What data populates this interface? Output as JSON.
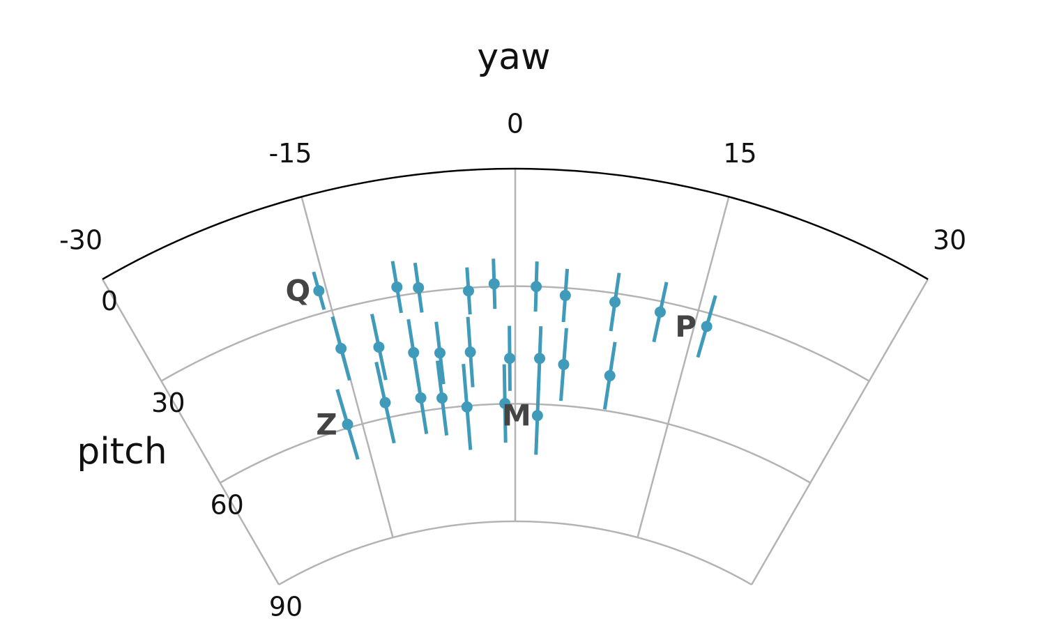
{
  "chart_data": {
    "type": "polar-errorbar",
    "theta_title": "yaw",
    "r_title": "pitch",
    "thetalim": [
      -30,
      30
    ],
    "thetaticks": [
      -30,
      -15,
      0,
      15,
      30
    ],
    "rlim": [
      0,
      90
    ],
    "rticks": [
      0,
      30,
      60,
      90
    ],
    "color": "#3f9bb9",
    "grid_color": "#b3b3b3",
    "theta": [
      -15.6,
      -9.5,
      -7.8,
      -3.8,
      -1.7,
      1.7,
      4.1,
      8.2,
      12.0,
      16.0,
      -15.1,
      -11.9,
      -9.0,
      -6.7,
      -4.0,
      -0.5,
      2.2,
      4.4,
      8.7,
      -16.4,
      -12.4,
      -9.0,
      -7.0,
      -4.7,
      -1.0,
      2.2
    ],
    "values": [
      24.3,
      27.7,
      28.7,
      30.8,
      29.3,
      30.0,
      31.9,
      32.2,
      32.7,
      33.4,
      40.0,
      41.9,
      44.9,
      45.9,
      46.4,
      48.4,
      48.3,
      49.5,
      51.0,
      59.1,
      56.1,
      56.6,
      57.4,
      60.3,
      59.9,
      62.9
    ],
    "errors": [
      5.0,
      6.7,
      6.4,
      6.0,
      6.4,
      6.4,
      6.8,
      7.5,
      7.8,
      8.2,
      8.4,
      8.6,
      8.6,
      8.0,
      9.0,
      8.3,
      8.2,
      9.3,
      8.7,
      9.3,
      10.6,
      9.3,
      9.6,
      11.0,
      10.0,
      10.0
    ],
    "labels": [
      "Q",
      null,
      null,
      null,
      null,
      null,
      null,
      null,
      null,
      "P",
      null,
      null,
      null,
      null,
      null,
      null,
      null,
      null,
      null,
      "Z",
      null,
      null,
      null,
      null,
      null,
      "M"
    ]
  }
}
